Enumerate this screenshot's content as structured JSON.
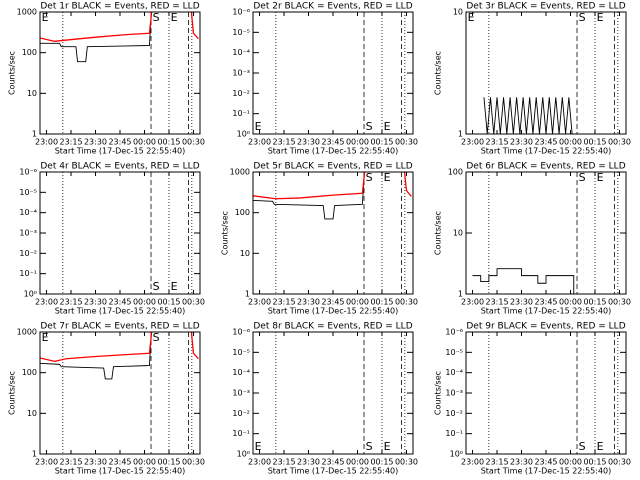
{
  "chart_data": [
    {
      "type": "line",
      "title": "Det 1r BLACK = Events, RED = LLD",
      "ylabel": "Counts/sec",
      "xlabel": "Start Time (17-Dec-15 22:55:40)",
      "log": true,
      "xlim": [
        "22:56",
        "00:34"
      ],
      "xticks": [
        "23:00",
        "23:15",
        "23:30",
        "23:45",
        "00:00",
        "00:15",
        "00:30"
      ],
      "ylim": [
        1,
        1000
      ],
      "yticks": [
        1,
        10,
        100,
        1000
      ],
      "series": [
        {
          "color": "#000000",
          "x": [
            "22:56",
            "23:08",
            "23:09",
            "23:18",
            "23:19",
            "23:24",
            "23:25",
            "00:03",
            "00:04",
            "00:05"
          ],
          "values": [
            170,
            170,
            140,
            140,
            60,
            60,
            140,
            150,
            700,
            2000
          ]
        },
        {
          "color": "#ff0000",
          "x": [
            "22:56",
            "23:05",
            "23:10",
            "23:30",
            "23:50",
            "00:03",
            "00:04",
            "00:05",
            "00:28",
            "00:30",
            "00:33"
          ],
          "values": [
            230,
            190,
            200,
            240,
            280,
            300,
            700,
            2000,
            2000,
            300,
            220
          ]
        }
      ],
      "vlines": [
        {
          "x": "23:10",
          "style": "dotted"
        },
        {
          "x": "00:04",
          "style": "dashed"
        },
        {
          "x": "00:15",
          "style": "dotted"
        },
        {
          "x": "00:27",
          "style": "dashed"
        },
        {
          "x": "00:29",
          "style": "dotted"
        }
      ],
      "annotations": [
        {
          "text": "E",
          "x": "22:57",
          "pos": "top"
        },
        {
          "text": "S",
          "x": "00:05",
          "pos": "top"
        },
        {
          "text": "E",
          "x": "00:16",
          "pos": "top"
        }
      ]
    },
    {
      "type": "line",
      "title": "Det 2r BLACK = Events, RED = LLD",
      "xlabel": "Start Time (17-Dec-15 22:55:40)",
      "log": true,
      "xlim": [
        "22:56",
        "00:34"
      ],
      "xticks": [
        "23:00",
        "23:15",
        "23:30",
        "23:45",
        "00:00",
        "00:15",
        "00:30"
      ],
      "ylim": [
        1,
        1e-06
      ],
      "yticks": [
        {
          "value": 1,
          "label": "10⁰"
        },
        {
          "value": 0.1,
          "label": "10⁻¹"
        },
        {
          "value": 0.01,
          "label": "10⁻²"
        },
        {
          "value": 0.001,
          "label": "10⁻³"
        },
        {
          "value": 0.0001,
          "label": "10⁻⁴"
        },
        {
          "value": 1e-05,
          "label": "10⁻⁵"
        },
        {
          "value": 1e-06,
          "label": "10⁻⁶"
        }
      ],
      "series": [],
      "vlines": [
        {
          "x": "23:10",
          "style": "dotted"
        },
        {
          "x": "00:04",
          "style": "dashed"
        },
        {
          "x": "00:15",
          "style": "dotted"
        },
        {
          "x": "00:27",
          "style": "dashed"
        },
        {
          "x": "00:29",
          "style": "dotted"
        }
      ],
      "annotations": [
        {
          "text": "E",
          "x": "22:57",
          "pos": "bottom"
        },
        {
          "text": "S",
          "x": "00:05",
          "pos": "bottom"
        },
        {
          "text": "E",
          "x": "00:16",
          "pos": "bottom"
        }
      ]
    },
    {
      "type": "line",
      "title": "Det 3r BLACK = Events, RED = LLD",
      "ylabel": "Counts/sec",
      "xlabel": "Start Time (17-Dec-15 22:55:40)",
      "log": true,
      "xlim": [
        "22:56",
        "00:34"
      ],
      "xticks": [
        "23:00",
        "23:15",
        "23:30",
        "23:45",
        "00:00",
        "00:15",
        "00:30"
      ],
      "ylim": [
        1,
        10
      ],
      "yticks": [
        1,
        10
      ],
      "series": [
        {
          "color": "#000000",
          "x": [
            "23:07",
            "23:09",
            "23:11",
            "23:13",
            "23:15",
            "23:17",
            "23:19",
            "23:21",
            "23:23",
            "23:25",
            "23:27",
            "23:29",
            "23:31",
            "23:33",
            "23:35",
            "23:37",
            "23:39",
            "23:41",
            "23:43",
            "23:45",
            "23:47",
            "23:49",
            "23:51",
            "23:53",
            "23:55",
            "23:57",
            "23:59",
            "00:01"
          ],
          "values": [
            2,
            1,
            2,
            1,
            2,
            1,
            2,
            1,
            2,
            1,
            2,
            1,
            2,
            1,
            2,
            1,
            2,
            1,
            2,
            1,
            2,
            1,
            2,
            1,
            2,
            1,
            2,
            1
          ]
        }
      ],
      "vlines": [
        {
          "x": "23:10",
          "style": "dotted"
        },
        {
          "x": "00:04",
          "style": "dashed"
        },
        {
          "x": "00:15",
          "style": "dotted"
        },
        {
          "x": "00:27",
          "style": "dashed"
        },
        {
          "x": "00:29",
          "style": "dotted"
        }
      ],
      "annotations": [
        {
          "text": "E",
          "x": "22:57",
          "pos": "top"
        },
        {
          "text": "S",
          "x": "00:05",
          "pos": "top"
        },
        {
          "text": "E",
          "x": "00:16",
          "pos": "top"
        }
      ]
    },
    {
      "type": "line",
      "title": "Det 4r BLACK = Events, RED = LLD",
      "xlabel": "Start Time (17-Dec-15 22:55:40)",
      "log": true,
      "xlim": [
        "22:56",
        "00:34"
      ],
      "xticks": [
        "23:00",
        "23:15",
        "23:30",
        "23:45",
        "00:00",
        "00:15",
        "00:30"
      ],
      "ylim": [
        1,
        1e-06
      ],
      "yticks": [
        {
          "value": 1,
          "label": "10⁰"
        },
        {
          "value": 0.1,
          "label": "10⁻¹"
        },
        {
          "value": 0.01,
          "label": "10⁻²"
        },
        {
          "value": 0.001,
          "label": "10⁻³"
        },
        {
          "value": 0.0001,
          "label": "10⁻⁴"
        },
        {
          "value": 1e-05,
          "label": "10⁻⁵"
        },
        {
          "value": 1e-06,
          "label": "10⁻⁶"
        }
      ],
      "series": [],
      "vlines": [
        {
          "x": "23:10",
          "style": "dotted"
        },
        {
          "x": "00:04",
          "style": "dashed"
        },
        {
          "x": "00:15",
          "style": "dotted"
        },
        {
          "x": "00:27",
          "style": "dashed"
        },
        {
          "x": "00:29",
          "style": "dotted"
        }
      ],
      "annotations": [
        {
          "text": "S",
          "x": "00:05",
          "pos": "bottom"
        },
        {
          "text": "E",
          "x": "00:16",
          "pos": "bottom"
        }
      ]
    },
    {
      "type": "line",
      "title": "Det 5r BLACK = Events, RED = LLD",
      "ylabel": "Counts/sec",
      "xlabel": "Start Time (17-Dec-15 22:55:40)",
      "log": true,
      "xlim": [
        "22:56",
        "00:34"
      ],
      "xticks": [
        "23:00",
        "23:15",
        "23:30",
        "23:45",
        "00:00",
        "00:15",
        "00:30"
      ],
      "ylim": [
        1,
        1000
      ],
      "yticks": [
        1,
        10,
        100,
        1000
      ],
      "series": [
        {
          "color": "#000000",
          "x": [
            "22:56",
            "23:08",
            "23:09",
            "23:39",
            "23:40",
            "23:45",
            "23:46",
            "00:03",
            "00:04",
            "00:05"
          ],
          "values": [
            200,
            190,
            160,
            150,
            70,
            70,
            150,
            160,
            700,
            2000
          ]
        },
        {
          "color": "#ff0000",
          "x": [
            "22:56",
            "23:10",
            "23:25",
            "23:45",
            "00:03",
            "00:04",
            "00:05",
            "00:28",
            "00:30",
            "00:33"
          ],
          "values": [
            260,
            220,
            230,
            270,
            300,
            700,
            2000,
            2000,
            350,
            250
          ]
        }
      ],
      "vlines": [
        {
          "x": "23:10",
          "style": "dotted"
        },
        {
          "x": "00:04",
          "style": "dashed"
        },
        {
          "x": "00:15",
          "style": "dotted"
        },
        {
          "x": "00:27",
          "style": "dashed"
        },
        {
          "x": "00:29",
          "style": "dotted"
        }
      ],
      "annotations": [
        {
          "text": "S",
          "x": "00:05",
          "pos": "top"
        },
        {
          "text": "E",
          "x": "00:16",
          "pos": "top"
        }
      ]
    },
    {
      "type": "line",
      "title": "Det 6r BLACK = Events, RED = LLD",
      "ylabel": "Counts/sec",
      "xlabel": "Start Time (17-Dec-15 22:55:40)",
      "log": true,
      "xlim": [
        "22:56",
        "00:34"
      ],
      "xticks": [
        "23:00",
        "23:15",
        "23:30",
        "23:45",
        "00:00",
        "00:15",
        "00:30"
      ],
      "ylim": [
        1,
        100
      ],
      "yticks": [
        1,
        10,
        100
      ],
      "step": true,
      "series": [
        {
          "color": "#000000",
          "x": [
            "23:00",
            "23:05",
            "23:10",
            "23:15",
            "23:30",
            "23:40",
            "23:45",
            "00:02"
          ],
          "values": [
            2,
            1.6,
            2,
            2.6,
            2,
            1.5,
            2,
            1
          ]
        }
      ],
      "vlines": [
        {
          "x": "23:10",
          "style": "dotted"
        },
        {
          "x": "00:04",
          "style": "dashed"
        },
        {
          "x": "00:15",
          "style": "dotted"
        },
        {
          "x": "00:27",
          "style": "dashed"
        },
        {
          "x": "00:29",
          "style": "dotted"
        }
      ],
      "annotations": [
        {
          "text": "S",
          "x": "00:05",
          "pos": "top"
        },
        {
          "text": "E",
          "x": "00:16",
          "pos": "top"
        }
      ]
    },
    {
      "type": "line",
      "title": "Det 7r BLACK = Events, RED = LLD",
      "ylabel": "Counts/sec",
      "xlabel": "Start Time (17-Dec-15 22:55:40)",
      "log": true,
      "xlim": [
        "22:56",
        "00:34"
      ],
      "xticks": [
        "23:00",
        "23:15",
        "23:30",
        "23:45",
        "00:00",
        "00:15",
        "00:30"
      ],
      "ylim": [
        1,
        1000
      ],
      "yticks": [
        1,
        10,
        100,
        1000
      ],
      "series": [
        {
          "color": "#000000",
          "x": [
            "22:56",
            "23:08",
            "23:09",
            "23:35",
            "23:36",
            "23:40",
            "23:41",
            "00:03",
            "00:04",
            "00:05"
          ],
          "values": [
            170,
            160,
            140,
            130,
            70,
            70,
            140,
            150,
            700,
            2000
          ]
        },
        {
          "color": "#ff0000",
          "x": [
            "22:56",
            "23:05",
            "23:12",
            "23:30",
            "23:50",
            "00:03",
            "00:04",
            "00:05",
            "00:28",
            "00:30",
            "00:33"
          ],
          "values": [
            230,
            190,
            220,
            250,
            280,
            300,
            700,
            2000,
            2000,
            300,
            220
          ]
        }
      ],
      "vlines": [
        {
          "x": "23:10",
          "style": "dotted"
        },
        {
          "x": "00:04",
          "style": "dashed"
        },
        {
          "x": "00:15",
          "style": "dotted"
        },
        {
          "x": "00:27",
          "style": "dashed"
        },
        {
          "x": "00:29",
          "style": "dotted"
        }
      ],
      "annotations": [
        {
          "text": "E",
          "x": "22:57",
          "pos": "top"
        },
        {
          "text": "S",
          "x": "00:05",
          "pos": "top"
        }
      ]
    },
    {
      "type": "line",
      "title": "Det 8r BLACK = Events, RED = LLD",
      "xlabel": "Start Time (17-Dec-15 22:55:40)",
      "log": true,
      "xlim": [
        "22:56",
        "00:34"
      ],
      "xticks": [
        "23:00",
        "23:15",
        "23:30",
        "23:45",
        "00:00",
        "00:15",
        "00:30"
      ],
      "ylim": [
        1,
        1e-06
      ],
      "yticks": [
        {
          "value": 1,
          "label": "10⁰"
        },
        {
          "value": 0.1,
          "label": "10⁻¹"
        },
        {
          "value": 0.01,
          "label": "10⁻²"
        },
        {
          "value": 0.001,
          "label": "10⁻³"
        },
        {
          "value": 0.0001,
          "label": "10⁻⁴"
        },
        {
          "value": 1e-05,
          "label": "10⁻⁵"
        },
        {
          "value": 1e-06,
          "label": "10⁻⁶"
        }
      ],
      "series": [],
      "vlines": [
        {
          "x": "23:10",
          "style": "dotted"
        },
        {
          "x": "00:04",
          "style": "dashed"
        },
        {
          "x": "00:15",
          "style": "dotted"
        },
        {
          "x": "00:27",
          "style": "dashed"
        },
        {
          "x": "00:29",
          "style": "dotted"
        }
      ],
      "annotations": [
        {
          "text": "E",
          "x": "22:57",
          "pos": "bottom"
        },
        {
          "text": "S",
          "x": "00:05",
          "pos": "bottom"
        },
        {
          "text": "E",
          "x": "00:16",
          "pos": "bottom"
        }
      ]
    },
    {
      "type": "line",
      "title": "Det 9r BLACK = Events, RED = LLD",
      "ylabel": "Counts/sec",
      "xlabel": "Start Time (17-Dec-15 22:55:40)",
      "log": true,
      "xlim": [
        "22:56",
        "00:34"
      ],
      "xticks": [
        "23:00",
        "23:15",
        "23:30",
        "23:45",
        "00:00",
        "00:15",
        "00:30"
      ],
      "ylim": [
        1,
        1e-06
      ],
      "yticks": [
        {
          "value": 1,
          "label": "10⁰"
        },
        {
          "value": 0.1,
          "label": "10⁻¹"
        },
        {
          "value": 0.01,
          "label": "10⁻²"
        },
        {
          "value": 0.001,
          "label": "10⁻³"
        },
        {
          "value": 0.0001,
          "label": "10⁻⁴"
        },
        {
          "value": 1e-05,
          "label": "10⁻⁵"
        },
        {
          "value": 1e-06,
          "label": "10⁻⁶"
        }
      ],
      "series": [],
      "vlines": [
        {
          "x": "23:10",
          "style": "dotted"
        },
        {
          "x": "00:04",
          "style": "dashed"
        },
        {
          "x": "00:15",
          "style": "dotted"
        },
        {
          "x": "00:27",
          "style": "dashed"
        },
        {
          "x": "00:29",
          "style": "dotted"
        }
      ],
      "annotations": [
        {
          "text": "S",
          "x": "00:05",
          "pos": "bottom"
        },
        {
          "text": "E",
          "x": "00:16",
          "pos": "bottom"
        }
      ]
    }
  ]
}
